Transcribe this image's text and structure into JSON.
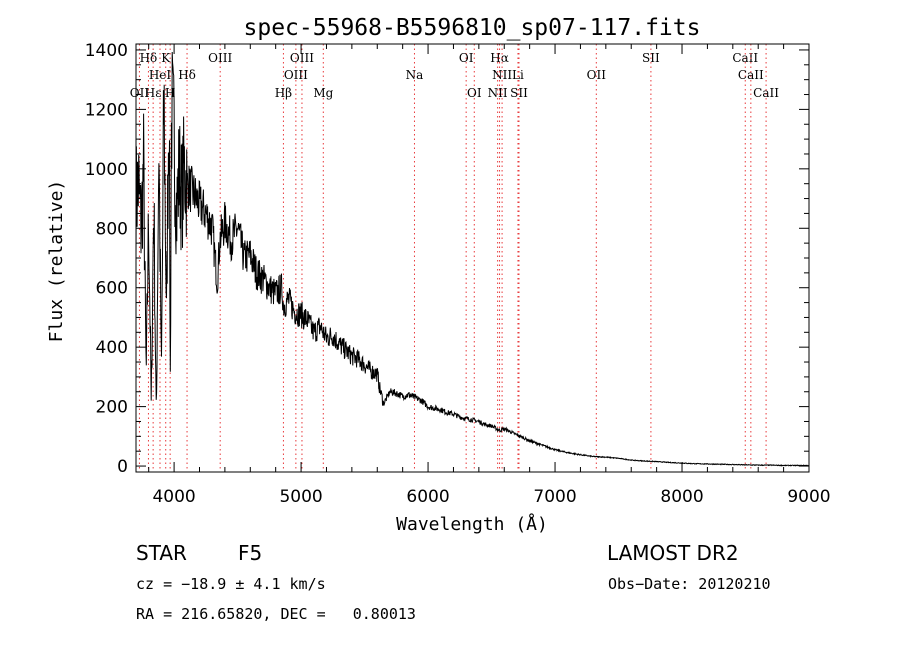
{
  "chart_data": {
    "type": "line",
    "title": "spec-55968-B5596810_sp07-117.fits",
    "xlabel": "Wavelength (Å)",
    "ylabel": "Flux (relative)",
    "xlim": [
      3700,
      9000
    ],
    "ylim": [
      -20,
      1420
    ],
    "x_ticks": [
      4000,
      5000,
      6000,
      7000,
      8000,
      9000
    ],
    "y_ticks": [
      0,
      200,
      400,
      600,
      800,
      1000,
      1200,
      1400
    ],
    "series": [
      {
        "color": "#000000",
        "x": [
          3700,
          3720,
          3740,
          3760,
          3780,
          3800,
          3820,
          3840,
          3860,
          3880,
          3900,
          3920,
          3940,
          3960,
          3970,
          3980,
          4000,
          4020,
          4040,
          4060,
          4080,
          4100,
          4150,
          4200,
          4250,
          4300,
          4340,
          4360,
          4400,
          4450,
          4500,
          4550,
          4600,
          4650,
          4700,
          4750,
          4800,
          4850,
          4861,
          4900,
          4950,
          5000,
          5050,
          5100,
          5150,
          5200,
          5250,
          5300,
          5350,
          5400,
          5450,
          5500,
          5550,
          5600,
          5620,
          5650,
          5700,
          5750,
          5800,
          5850,
          5900,
          5950,
          6000,
          6050,
          6100,
          6150,
          6200,
          6250,
          6300,
          6350,
          6400,
          6450,
          6500,
          6563,
          6600,
          6650,
          6700,
          6750,
          6800,
          6900,
          7000,
          7100,
          7200,
          7300,
          7400,
          7500,
          7600,
          7700,
          7800,
          7900,
          8000,
          8100,
          8200,
          8300,
          8400,
          8500,
          8600,
          8700,
          8800,
          8900,
          9000
        ],
        "y": [
          900,
          950,
          800,
          1000,
          300,
          850,
          200,
          900,
          150,
          1100,
          300,
          1250,
          500,
          1300,
          300,
          1200,
          1100,
          850,
          1000,
          900,
          1000,
          950,
          920,
          880,
          850,
          800,
          620,
          760,
          820,
          760,
          800,
          700,
          710,
          650,
          630,
          600,
          580,
          600,
          540,
          560,
          520,
          510,
          490,
          450,
          470,
          430,
          440,
          410,
          390,
          370,
          360,
          340,
          320,
          310,
          260,
          210,
          250,
          245,
          235,
          240,
          230,
          220,
          200,
          195,
          190,
          180,
          175,
          165,
          160,
          155,
          150,
          140,
          135,
          120,
          125,
          115,
          105,
          95,
          85,
          70,
          55,
          45,
          38,
          32,
          30,
          26,
          20,
          17,
          15,
          12,
          10,
          8,
          7,
          6,
          5,
          4,
          3,
          3,
          2,
          2,
          2
        ]
      }
    ],
    "lines": [
      {
        "label": "Hδ",
        "x": 3798,
        "row": 0
      },
      {
        "label": "OII",
        "x": 3727,
        "row": 2
      },
      {
        "label": "Hε",
        "x": 3835,
        "row": 2
      },
      {
        "label": "HeI",
        "x": 3889,
        "row": 1
      },
      {
        "label": "K",
        "x": 3934,
        "row": 0
      },
      {
        "label": "H",
        "x": 3969,
        "row": 2
      },
      {
        "label": "Hδ",
        "x": 4102,
        "row": 1
      },
      {
        "label": "OIII",
        "x": 4363,
        "row": 0
      },
      {
        "label": "Hβ",
        "x": 4861,
        "row": 2
      },
      {
        "label": "OIII",
        "x": 4959,
        "row": 1
      },
      {
        "label": "OIII",
        "x": 5007,
        "row": 0
      },
      {
        "label": "Mg",
        "x": 5175,
        "row": 2
      },
      {
        "label": "Na",
        "x": 5893,
        "row": 1
      },
      {
        "label": "OI",
        "x": 6300,
        "row": 0
      },
      {
        "label": "OI",
        "x": 6364,
        "row": 2
      },
      {
        "label": "Hα",
        "x": 6563,
        "row": 0
      },
      {
        "label": "NII",
        "x": 6583,
        "row": 1
      },
      {
        "label": "NII",
        "x": 6548,
        "row": 2
      },
      {
        "label": "Li",
        "x": 6708,
        "row": 1
      },
      {
        "label": "SII",
        "x": 6716,
        "row": 2
      },
      {
        "label": "OII",
        "x": 7325,
        "row": 1
      },
      {
        "label": "SII",
        "x": 7755,
        "row": 0
      },
      {
        "label": "CaII",
        "x": 8498,
        "row": 0
      },
      {
        "label": "CaII",
        "x": 8542,
        "row": 1
      },
      {
        "label": "CaII",
        "x": 8662,
        "row": 2
      }
    ],
    "line_color": "#e8393b",
    "grid": false,
    "legend": "none"
  },
  "footer": {
    "object_class": "STAR",
    "subclass": "F5",
    "survey": "LAMOST DR2",
    "cz": "cz = −18.9 ± 4.1 km/s",
    "obs_date": "Obs−Date: 20120210",
    "coords": "RA = 216.65820, DEC =   0.80013"
  }
}
